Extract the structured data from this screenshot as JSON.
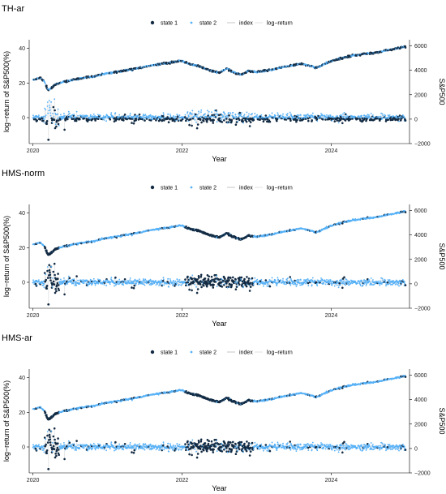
{
  "chart_data": [
    {
      "type": "scatter",
      "title": "TH-ar",
      "xlabel": "Year",
      "ylabel": "log−return of S&P500(%)",
      "ylabel_right": "S&P500",
      "xlim": [
        2019.95,
        2025.05
      ],
      "ylim": [
        -15,
        45
      ],
      "ylim_right": [
        -2000,
        6500
      ],
      "x_ticks": [
        {
          "value": 2020,
          "label": "2020"
        },
        {
          "value": 2022,
          "label": "2022"
        },
        {
          "value": 2024,
          "label": "2024"
        }
      ],
      "y_ticks": [
        {
          "value": 0,
          "label": "0"
        },
        {
          "value": 20,
          "label": "20"
        },
        {
          "value": 40,
          "label": "40"
        }
      ],
      "y_ticks_right": [
        {
          "value": -2000,
          "label": "−2000"
        },
        {
          "value": 0,
          "label": "0"
        },
        {
          "value": 2000,
          "label": "2000"
        },
        {
          "value": 4000,
          "label": "4000"
        },
        {
          "value": 6000,
          "label": "6000"
        }
      ],
      "legend": [
        "state 1",
        "state 2",
        "index",
        "log−return"
      ],
      "legend_position": "top",
      "grid": false,
      "states_profile": "th"
    },
    {
      "type": "scatter",
      "title": "HMS-norm",
      "xlabel": "Year",
      "ylabel": "log−return of S&P500(%)",
      "ylabel_right": "S&P500",
      "xlim": [
        2019.95,
        2025.05
      ],
      "ylim": [
        -15,
        45
      ],
      "ylim_right": [
        -2000,
        6500
      ],
      "x_ticks": [
        {
          "value": 2020,
          "label": "2020"
        },
        {
          "value": 2022,
          "label": "2022"
        },
        {
          "value": 2024,
          "label": "2024"
        }
      ],
      "y_ticks": [
        {
          "value": 0,
          "label": "0"
        },
        {
          "value": 20,
          "label": "20"
        },
        {
          "value": 40,
          "label": "40"
        }
      ],
      "y_ticks_right": [
        {
          "value": -2000,
          "label": "−2000"
        },
        {
          "value": 0,
          "label": "0"
        },
        {
          "value": 2000,
          "label": "2000"
        },
        {
          "value": 4000,
          "label": "4000"
        },
        {
          "value": 6000,
          "label": "6000"
        }
      ],
      "legend": [
        "state 1",
        "state 2",
        "index",
        "log−return"
      ],
      "legend_position": "top",
      "grid": false,
      "states_profile": "hms"
    },
    {
      "type": "scatter",
      "title": "HMS-ar",
      "xlabel": "Year",
      "ylabel": "log−return of S&P500(%)",
      "ylabel_right": "S&P500",
      "xlim": [
        2019.95,
        2025.05
      ],
      "ylim": [
        -15,
        45
      ],
      "ylim_right": [
        -2000,
        6500
      ],
      "x_ticks": [
        {
          "value": 2020,
          "label": "2020"
        },
        {
          "value": 2022,
          "label": "2022"
        },
        {
          "value": 2024,
          "label": "2024"
        }
      ],
      "y_ticks": [
        {
          "value": 0,
          "label": "0"
        },
        {
          "value": 20,
          "label": "20"
        },
        {
          "value": 40,
          "label": "40"
        }
      ],
      "y_ticks_right": [
        {
          "value": -2000,
          "label": "−2000"
        },
        {
          "value": 0,
          "label": "0"
        },
        {
          "value": 2000,
          "label": "2000"
        },
        {
          "value": 4000,
          "label": "4000"
        },
        {
          "value": 6000,
          "label": "6000"
        }
      ],
      "legend": [
        "state 1",
        "state 2",
        "index",
        "log−return"
      ],
      "legend_position": "top",
      "grid": false,
      "states_profile": "hms"
    }
  ],
  "shared": {
    "index_path": [
      [
        2020.0,
        3230
      ],
      [
        2020.1,
        3370
      ],
      [
        2020.15,
        3100
      ],
      [
        2020.2,
        2400
      ],
      [
        2020.23,
        2450
      ],
      [
        2020.3,
        2850
      ],
      [
        2020.4,
        3050
      ],
      [
        2020.5,
        3150
      ],
      [
        2020.6,
        3300
      ],
      [
        2020.7,
        3400
      ],
      [
        2020.8,
        3450
      ],
      [
        2020.9,
        3620
      ],
      [
        2021.0,
        3750
      ],
      [
        2021.2,
        3950
      ],
      [
        2021.4,
        4150
      ],
      [
        2021.6,
        4420
      ],
      [
        2021.8,
        4600
      ],
      [
        2022.0,
        4780
      ],
      [
        2022.1,
        4500
      ],
      [
        2022.2,
        4400
      ],
      [
        2022.3,
        4150
      ],
      [
        2022.4,
        3950
      ],
      [
        2022.5,
        3800
      ],
      [
        2022.6,
        4150
      ],
      [
        2022.7,
        3800
      ],
      [
        2022.8,
        3650
      ],
      [
        2022.9,
        3950
      ],
      [
        2023.0,
        3850
      ],
      [
        2023.2,
        4050
      ],
      [
        2023.4,
        4300
      ],
      [
        2023.6,
        4550
      ],
      [
        2023.8,
        4200
      ],
      [
        2024.0,
        4750
      ],
      [
        2024.2,
        5100
      ],
      [
        2024.4,
        5300
      ],
      [
        2024.6,
        5450
      ],
      [
        2024.8,
        5700
      ],
      [
        2025.0,
        5950
      ]
    ],
    "returns": {
      "calm_std": 0.9,
      "crisis_2020": {
        "from": 2020.15,
        "to": 2020.35,
        "extreme_min": -12.8,
        "extreme_max": 9.0
      },
      "stress_2022": {
        "from": 2022.05,
        "to": 2022.95,
        "range": [
          -4.5,
          5.5
        ]
      }
    }
  },
  "colors": {
    "state1": "#132b43",
    "state2": "#56b1f7",
    "index": "#b8b8b8",
    "logreturn": "#d9d9d9",
    "axis": "#000000"
  }
}
